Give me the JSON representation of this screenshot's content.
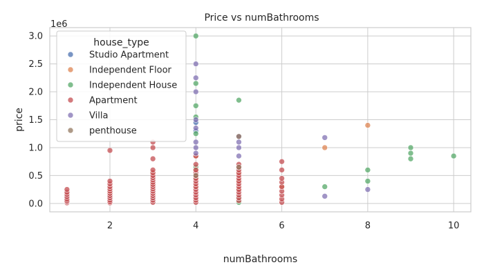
{
  "chart_data": {
    "type": "scatter",
    "title": "Price vs numBathrooms",
    "xlabel": "numBathrooms",
    "ylabel": "price",
    "y_offset_label": "1e6",
    "xlim": [
      0.6,
      10.4
    ],
    "ylim": [
      -0.15,
      3.15
    ],
    "x_ticks": [
      2,
      4,
      6,
      8,
      10
    ],
    "x_tick_labels": [
      "2",
      "4",
      "6",
      "8",
      "10"
    ],
    "y_ticks": [
      0.0,
      0.5,
      1.0,
      1.5,
      2.0,
      2.5,
      3.0
    ],
    "y_tick_labels": [
      "0.0",
      "0.5",
      "1.0",
      "1.5",
      "2.0",
      "2.5",
      "3.0"
    ],
    "grid": true,
    "legend_title": "house_type",
    "legend_position": "top-left",
    "series": [
      {
        "name": "Studio Apartment",
        "color": "#4c72b0",
        "points": [
          [
            1,
            0.03
          ],
          [
            1,
            0.06
          ],
          [
            1,
            0.1
          ],
          [
            2,
            0.05
          ],
          [
            2,
            0.12
          ],
          [
            3,
            0.08
          ],
          [
            4,
            1.3
          ],
          [
            4,
            1.45
          ]
        ]
      },
      {
        "name": "Independent Floor",
        "color": "#dd8452",
        "points": [
          [
            2,
            0.2
          ],
          [
            3,
            0.35
          ],
          [
            3,
            0.55
          ],
          [
            4,
            0.3
          ],
          [
            4,
            0.45
          ],
          [
            4,
            0.6
          ],
          [
            4,
            0.85
          ],
          [
            5,
            0.25
          ],
          [
            5,
            0.4
          ],
          [
            5,
            0.55
          ],
          [
            6,
            0.3
          ],
          [
            7,
            1.0
          ],
          [
            8,
            1.4
          ]
        ]
      },
      {
        "name": "Independent House",
        "color": "#55a868",
        "points": [
          [
            4,
            0.65
          ],
          [
            4,
            1.25
          ],
          [
            4,
            1.55
          ],
          [
            4,
            1.75
          ],
          [
            4,
            2.15
          ],
          [
            4,
            3.0
          ],
          [
            5,
            0.02
          ],
          [
            5,
            0.1
          ],
          [
            5,
            1.85
          ],
          [
            7,
            0.3
          ],
          [
            8,
            0.4
          ],
          [
            8,
            0.6
          ],
          [
            9,
            0.8
          ],
          [
            9,
            0.9
          ],
          [
            9,
            1.0
          ],
          [
            10,
            0.85
          ]
        ]
      },
      {
        "name": "Apartment",
        "color": "#c44e52",
        "points": [
          [
            1,
            0.01
          ],
          [
            1,
            0.03
          ],
          [
            1,
            0.05
          ],
          [
            1,
            0.08
          ],
          [
            1,
            0.12
          ],
          [
            1,
            0.16
          ],
          [
            1,
            0.2
          ],
          [
            1,
            0.25
          ],
          [
            2,
            0.01
          ],
          [
            2,
            0.03
          ],
          [
            2,
            0.06
          ],
          [
            2,
            0.1
          ],
          [
            2,
            0.14
          ],
          [
            2,
            0.18
          ],
          [
            2,
            0.22
          ],
          [
            2,
            0.26
          ],
          [
            2,
            0.3
          ],
          [
            2,
            0.35
          ],
          [
            2,
            0.4
          ],
          [
            2,
            0.95
          ],
          [
            3,
            0.02
          ],
          [
            3,
            0.06
          ],
          [
            3,
            0.1
          ],
          [
            3,
            0.14
          ],
          [
            3,
            0.18
          ],
          [
            3,
            0.22
          ],
          [
            3,
            0.26
          ],
          [
            3,
            0.3
          ],
          [
            3,
            0.34
          ],
          [
            3,
            0.38
          ],
          [
            3,
            0.42
          ],
          [
            3,
            0.46
          ],
          [
            3,
            0.5
          ],
          [
            3,
            0.55
          ],
          [
            3,
            0.6
          ],
          [
            3,
            0.8
          ],
          [
            3,
            1.0
          ],
          [
            3,
            1.1
          ],
          [
            4,
            0.02
          ],
          [
            4,
            0.06
          ],
          [
            4,
            0.1
          ],
          [
            4,
            0.15
          ],
          [
            4,
            0.2
          ],
          [
            4,
            0.25
          ],
          [
            4,
            0.3
          ],
          [
            4,
            0.35
          ],
          [
            4,
            0.4
          ],
          [
            4,
            0.45
          ],
          [
            4,
            0.5
          ],
          [
            4,
            0.55
          ],
          [
            4,
            0.6
          ],
          [
            4,
            0.7
          ],
          [
            4,
            0.85
          ],
          [
            5,
            0.05
          ],
          [
            5,
            0.1
          ],
          [
            5,
            0.15
          ],
          [
            5,
            0.2
          ],
          [
            5,
            0.25
          ],
          [
            5,
            0.3
          ],
          [
            5,
            0.35
          ],
          [
            5,
            0.4
          ],
          [
            5,
            0.45
          ],
          [
            5,
            0.5
          ],
          [
            5,
            0.55
          ],
          [
            5,
            0.6
          ],
          [
            5,
            0.65
          ],
          [
            5,
            0.7
          ],
          [
            6,
            0.02
          ],
          [
            6,
            0.08
          ],
          [
            6,
            0.15
          ],
          [
            6,
            0.22
          ],
          [
            6,
            0.3
          ],
          [
            6,
            0.38
          ],
          [
            6,
            0.45
          ],
          [
            6,
            0.6
          ],
          [
            6,
            0.75
          ]
        ]
      },
      {
        "name": "Villa",
        "color": "#8172b3",
        "points": [
          [
            4,
            0.9
          ],
          [
            4,
            1.0
          ],
          [
            4,
            1.1
          ],
          [
            4,
            1.35
          ],
          [
            4,
            1.5
          ],
          [
            4,
            2.0
          ],
          [
            4,
            2.25
          ],
          [
            4,
            2.5
          ],
          [
            5,
            0.85
          ],
          [
            5,
            1.0
          ],
          [
            5,
            1.1
          ],
          [
            5,
            1.2
          ],
          [
            7,
            0.13
          ],
          [
            7,
            1.18
          ],
          [
            8,
            0.25
          ]
        ]
      },
      {
        "name": "penthouse",
        "color": "#937860",
        "points": [
          [
            4,
            0.5
          ],
          [
            5,
            1.2
          ],
          [
            5,
            0.65
          ]
        ]
      }
    ]
  }
}
